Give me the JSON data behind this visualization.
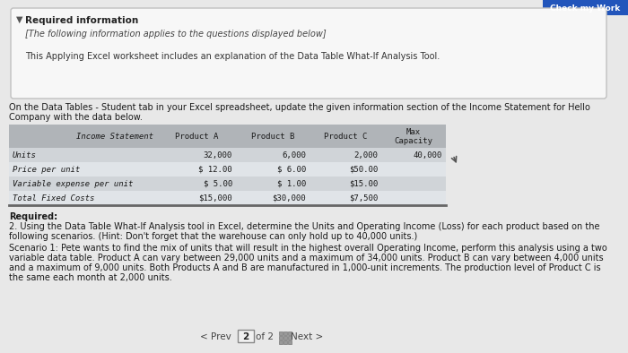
{
  "page_bg": "#e8e8e8",
  "top_box_bg": "#f7f7f7",
  "top_box_border": "#cccccc",
  "required_info_title": "Required information",
  "required_info_italic": "[The following information applies to the questions displayed below]",
  "required_info_body": "This Applying Excel worksheet includes an explanation of the Data Table What-If Analysis Tool.",
  "btn_color": "#2255bb",
  "btn_text": "Check my Work",
  "para1_line1": "On the Data Tables - Student tab in your Excel spreadsheet, update the given information section of the Income Statement for Hello",
  "para1_line2": "Company with the data below.",
  "table_header_bg": "#b0b4b8",
  "table_row_colors": [
    "#d0d4d8",
    "#e0e4e8",
    "#d0d4d8",
    "#e0e4e8"
  ],
  "table_col_header": [
    "Income Statement",
    "Product A",
    "Product B",
    "Product C",
    "Max\nCapacity"
  ],
  "table_rows": [
    [
      "Units",
      "32,000",
      "6,000",
      "2,000",
      "40,000"
    ],
    [
      "Price per unit",
      "$ 12.00",
      "$ 6.00",
      "$50.00",
      ""
    ],
    [
      "Variable expense per unit",
      "$ 5.00",
      "$ 1.00",
      "$15.00",
      ""
    ],
    [
      "Total Fixed Costs",
      "$15,000",
      "$30,000",
      "$7,500",
      ""
    ]
  ],
  "required_label": "Required:",
  "required_body_line1": "2. Using the Data Table What-If Analysis tool in Excel, determine the Units and Operating Income (Loss) for each product based on the",
  "required_body_line2": "following scenarios. (Hint: Don't forget that the warehouse can only hold up to 40,000 units.)",
  "scenario_lines": [
    "Scenario 1: Pete wants to find the mix of units that will result in the highest overall Operating Income, perform this analysis using a two",
    "variable data table. Product A can vary between 29,000 units and a maximum of 34,000 units. Product B can vary between 4,000 units",
    "and a maximum of 9,000 units. Both Products A and B are manufactured in 1,000-unit increments. The production level of Product C is",
    "the same each month at 2,000 units."
  ],
  "nav_prev": "< Prev",
  "nav_page": "2",
  "nav_of": "of 2",
  "nav_next": "Next >"
}
